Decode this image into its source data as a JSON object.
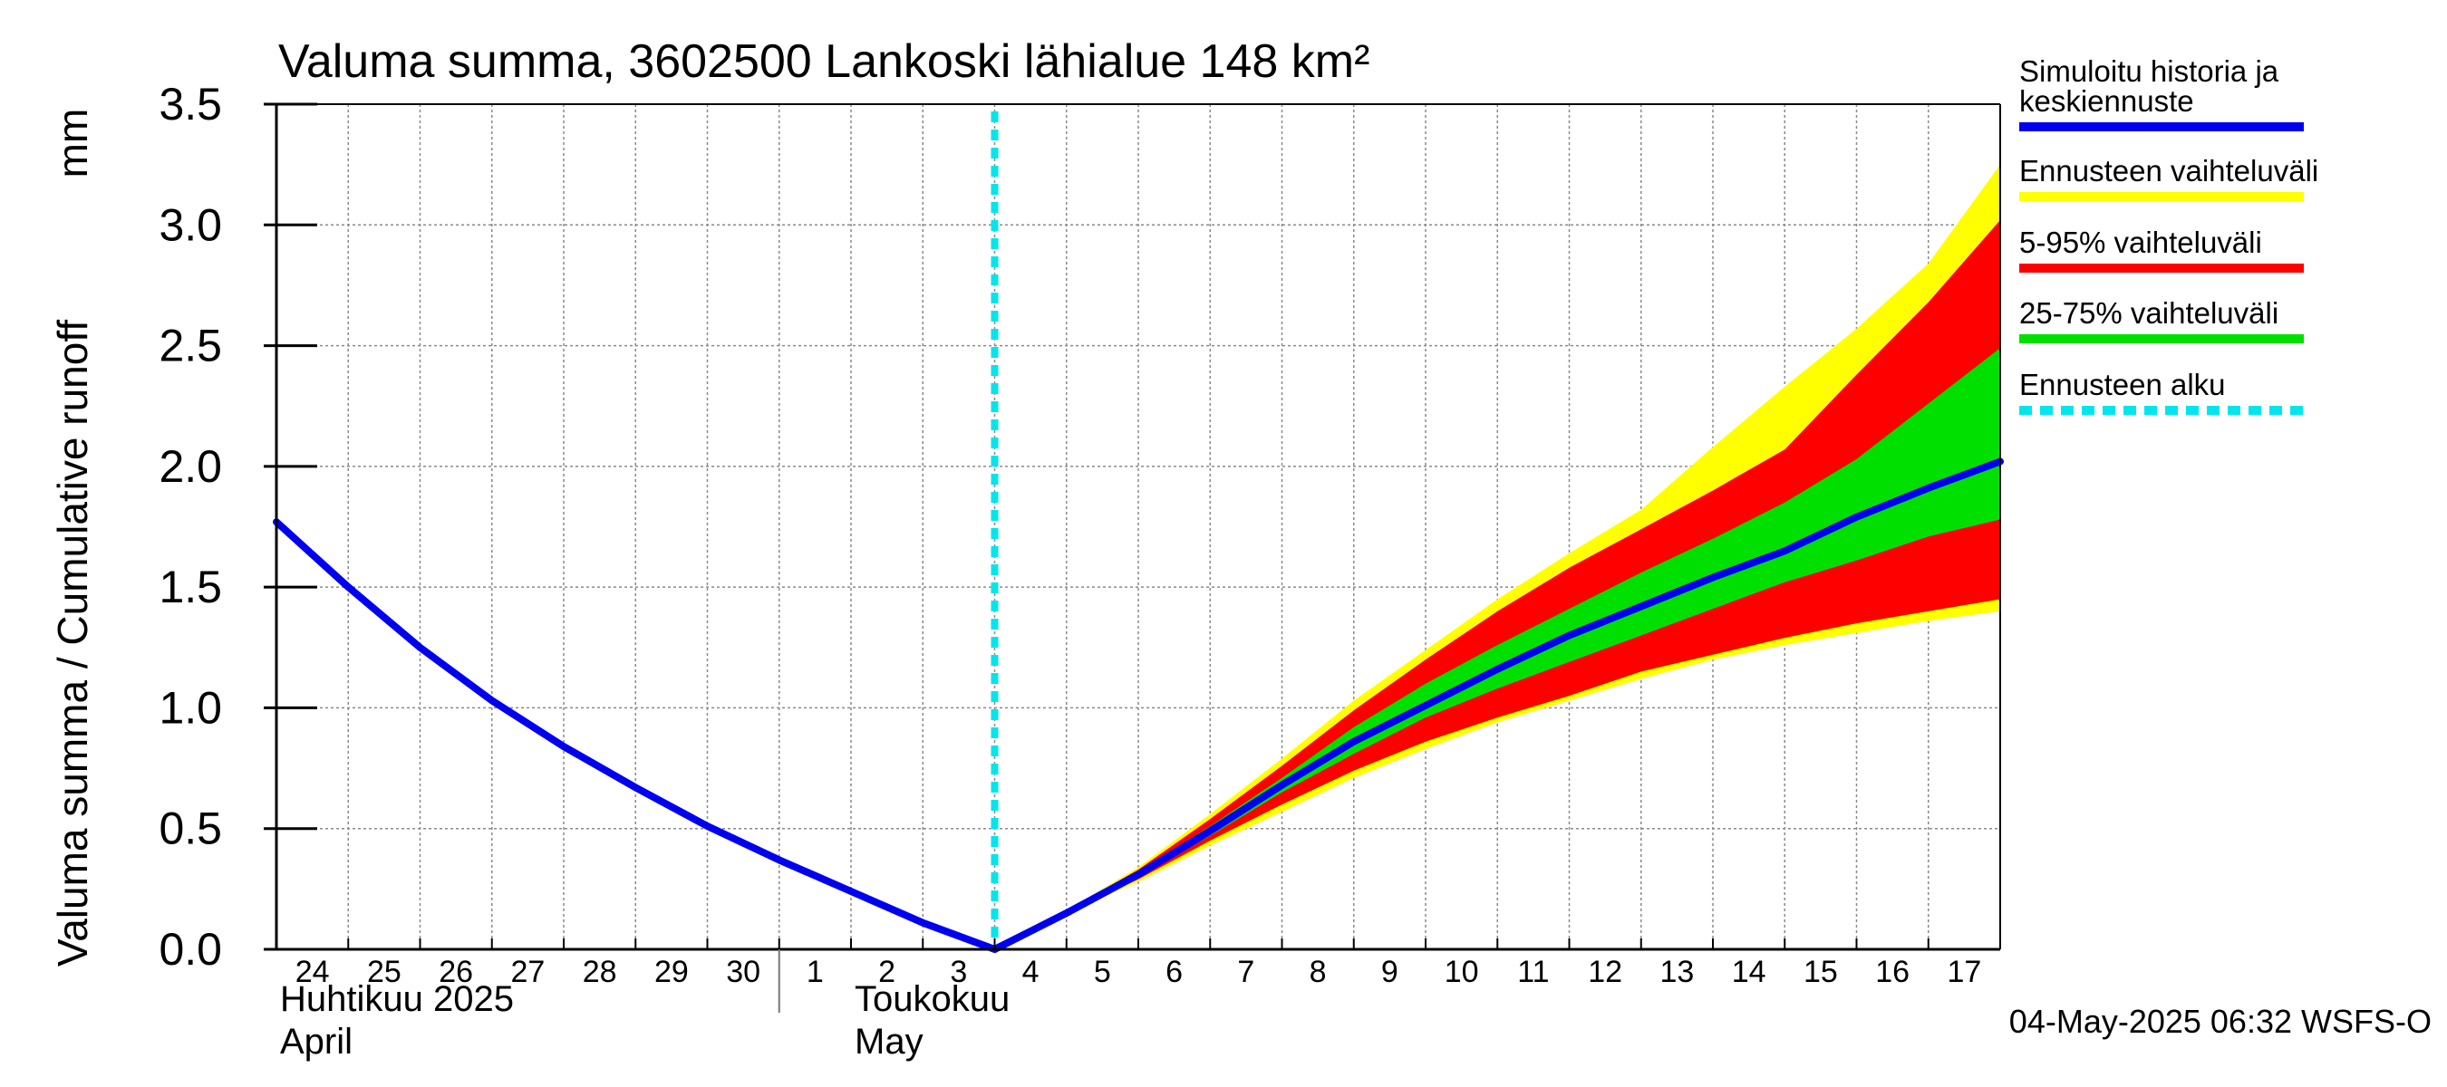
{
  "chart_data": {
    "type": "area",
    "title": "Valuma summa, 3602500 Lankoski lähialue 148 km²",
    "ylabel_fi": "Valuma summa / Cumulative runoff",
    "ylabel_unit": "mm",
    "ylim": [
      0,
      3.5
    ],
    "yticks": [
      "0.0",
      "0.5",
      "1.0",
      "1.5",
      "2.0",
      "2.5",
      "3.0",
      "3.5"
    ],
    "xlim": [
      0,
      24
    ],
    "day_ticks": [
      "24",
      "25",
      "26",
      "27",
      "28",
      "29",
      "30",
      "1",
      "2",
      "3",
      "4",
      "5",
      "6",
      "7",
      "8",
      "9",
      "10",
      "11",
      "12",
      "13",
      "14",
      "15",
      "16",
      "17"
    ],
    "month_labels": [
      {
        "line1": "Huhtikuu  2025",
        "line2": "April",
        "day_index": 0
      },
      {
        "line1": "Toukokuu",
        "line2": "May",
        "day_index": 8
      }
    ],
    "month_divider_day_index": 7,
    "forecast_start_x": 10,
    "x": [
      0,
      1,
      2,
      3,
      4,
      5,
      6,
      7,
      8,
      9,
      10,
      11,
      12,
      13,
      14,
      15,
      16,
      17,
      18,
      19,
      20,
      21,
      22,
      23,
      24
    ],
    "series": [
      {
        "name": "Ennusteen vaihteluväli",
        "kind": "band",
        "color": "#ffff00",
        "start": 10,
        "upper": [
          0.0,
          0.16,
          0.34,
          0.56,
          0.79,
          1.03,
          1.24,
          1.45,
          1.64,
          1.82,
          2.08,
          2.33,
          2.57,
          2.84,
          3.25
        ],
        "lower": [
          0.0,
          0.15,
          0.28,
          0.43,
          0.57,
          0.71,
          0.83,
          0.94,
          1.03,
          1.12,
          1.2,
          1.26,
          1.31,
          1.36,
          1.4
        ]
      },
      {
        "name": "5-95% vaihteluväli",
        "kind": "band",
        "color": "#ff0000",
        "start": 10,
        "upper": [
          0.0,
          0.16,
          0.33,
          0.54,
          0.76,
          0.99,
          1.2,
          1.4,
          1.58,
          1.74,
          1.9,
          2.07,
          2.38,
          2.68,
          3.02
        ],
        "lower": [
          0.0,
          0.15,
          0.29,
          0.45,
          0.6,
          0.74,
          0.86,
          0.96,
          1.05,
          1.15,
          1.22,
          1.29,
          1.35,
          1.4,
          1.45
        ]
      },
      {
        "name": "25-75% vaihteluväli",
        "kind": "band",
        "color": "#00e000",
        "start": 10,
        "upper": [
          0.0,
          0.15,
          0.32,
          0.51,
          0.71,
          0.92,
          1.1,
          1.26,
          1.41,
          1.56,
          1.7,
          1.85,
          2.03,
          2.26,
          2.49
        ],
        "lower": [
          0.0,
          0.15,
          0.3,
          0.47,
          0.65,
          0.81,
          0.96,
          1.08,
          1.19,
          1.3,
          1.41,
          1.52,
          1.61,
          1.71,
          1.78
        ]
      },
      {
        "name": "Simuloitu historia ja keskiennuste",
        "kind": "line",
        "color": "#0000ee",
        "start": 0,
        "values": [
          1.77,
          1.5,
          1.25,
          1.03,
          0.84,
          0.67,
          0.51,
          0.37,
          0.24,
          0.11,
          0.0,
          0.15,
          0.31,
          0.49,
          0.68,
          0.86,
          1.01,
          1.16,
          1.3,
          1.42,
          1.54,
          1.65,
          1.79,
          1.91,
          2.02
        ]
      }
    ],
    "legend": [
      {
        "label": "Simuloitu historia ja keskiennuste",
        "label_line1": "Simuloitu historia ja",
        "label_line2": "keskiennuste",
        "color": "#0000ee",
        "style": "solid"
      },
      {
        "label": "Ennusteen vaihteluväli",
        "color": "#ffff00",
        "style": "solid"
      },
      {
        "label": "5-95% vaihteluväli",
        "color": "#ff0000",
        "style": "solid"
      },
      {
        "label": "25-75% vaihteluväli",
        "color": "#00e000",
        "style": "solid"
      },
      {
        "label": "Ennusteen alku",
        "color": "#00e5ee",
        "style": "dashed"
      }
    ],
    "legend_position": "right",
    "grid": true,
    "footer": "04-May-2025 06:32 WSFS-O"
  }
}
